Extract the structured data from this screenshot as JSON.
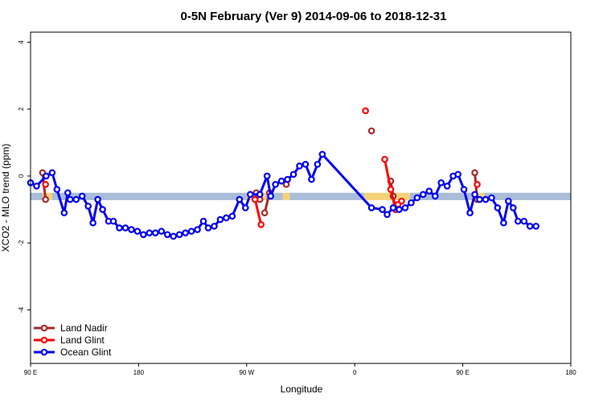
{
  "chart_data": {
    "type": "line",
    "title": "0-5N February (Ver 9)   2014-09-06 to 2018-12-31",
    "xlabel": "Longitude",
    "ylabel": "XCO2 - MLO trend (ppm)",
    "xlim": [
      90,
      540
    ],
    "ylim": [
      -5.6,
      4.3
    ],
    "x_ticks": [
      {
        "value": 90,
        "label": "90 E"
      },
      {
        "value": 180,
        "label": "180"
      },
      {
        "value": 270,
        "label": "90 W"
      },
      {
        "value": 360,
        "label": "0"
      },
      {
        "value": 450,
        "label": "90 E"
      },
      {
        "value": 540,
        "label": "180"
      }
    ],
    "y_ticks": [
      {
        "value": 4,
        "label": "4"
      },
      {
        "value": 2,
        "label": "2"
      },
      {
        "value": 0,
        "label": "0"
      },
      {
        "value": -2,
        "label": "-2"
      },
      {
        "value": -4,
        "label": "-4"
      }
    ],
    "bands": [
      {
        "x0": 90,
        "x1": 100,
        "y0": -0.72,
        "y1": -0.5,
        "color": "#a9bcd8"
      },
      {
        "x0": 100,
        "x1": 108,
        "y0": -0.72,
        "y1": -0.5,
        "color": "#f5d27a"
      },
      {
        "x0": 108,
        "x1": 270,
        "y0": -0.72,
        "y1": -0.5,
        "color": "#a9bcd8"
      },
      {
        "x0": 270,
        "x1": 286,
        "y0": -0.72,
        "y1": -0.5,
        "color": "#f5d27a"
      },
      {
        "x0": 286,
        "x1": 300,
        "y0": -0.72,
        "y1": -0.5,
        "color": "#a9bcd8"
      },
      {
        "x0": 300,
        "x1": 306,
        "y0": -0.72,
        "y1": -0.5,
        "color": "#f5d27a"
      },
      {
        "x0": 306,
        "x1": 368,
        "y0": -0.72,
        "y1": -0.5,
        "color": "#a9bcd8"
      },
      {
        "x0": 368,
        "x1": 406,
        "y0": -0.72,
        "y1": -0.5,
        "color": "#f5d27a"
      },
      {
        "x0": 406,
        "x1": 460,
        "y0": -0.72,
        "y1": -0.5,
        "color": "#a9bcd8"
      },
      {
        "x0": 460,
        "x1": 468,
        "y0": -0.72,
        "y1": -0.5,
        "color": "#f5d27a"
      },
      {
        "x0": 468,
        "x1": 540,
        "y0": -0.72,
        "y1": -0.5,
        "color": "#a9bcd8"
      }
    ],
    "legend_position": "bottom-left",
    "series": [
      {
        "name": "Land Nadir",
        "color": "#a52a2a",
        "segments": [
          [
            [
              100,
              0.1
            ],
            [
              102.5,
              -0.7
            ]
          ],
          [
            [
              278,
              -0.5
            ],
            [
              281,
              -0.7
            ]
          ],
          [
            [
              285,
              -1.1
            ],
            [
              289,
              -0.5
            ]
          ],
          [
            [
              303,
              -0.25
            ]
          ],
          [
            [
              374,
              1.35
            ]
          ],
          [
            [
              390,
              -0.15
            ],
            [
              392,
              -0.6
            ],
            [
              394,
              -1.0
            ]
          ],
          [
            [
              460,
              0.1
            ],
            [
              462,
              -0.7
            ]
          ]
        ]
      },
      {
        "name": "Land Glint",
        "color": "#ff0000",
        "segments": [
          [
            [
              102.5,
              -0.25
            ]
          ],
          [
            [
              277,
              -0.7
            ],
            [
              282,
              -1.45
            ]
          ],
          [
            [
              369,
              1.95
            ]
          ],
          [
            [
              385,
              0.5
            ],
            [
              390,
              -0.4
            ],
            [
              394,
              -1.0
            ]
          ],
          [
            [
              396,
              -0.85
            ],
            [
              399,
              -0.75
            ]
          ],
          [
            [
              462,
              -0.25
            ]
          ]
        ]
      },
      {
        "name": "Ocean Glint",
        "color": "#0000ee",
        "points": [
          [
            90,
            -0.2
          ],
          [
            95,
            -0.3
          ],
          [
            103,
            0.0
          ],
          [
            108,
            0.1
          ],
          [
            112,
            -0.4
          ],
          [
            118,
            -1.1
          ],
          [
            121,
            -0.5
          ],
          [
            123,
            -0.7
          ],
          [
            128,
            -0.7
          ],
          [
            133,
            -0.6
          ],
          [
            138,
            -0.9
          ],
          [
            142,
            -1.4
          ],
          [
            146,
            -0.7
          ],
          [
            150,
            -1.0
          ],
          [
            155,
            -1.35
          ],
          [
            159,
            -1.35
          ],
          [
            164,
            -1.55
          ],
          [
            169,
            -1.55
          ],
          [
            174,
            -1.6
          ],
          [
            179,
            -1.65
          ],
          [
            184,
            -1.75
          ],
          [
            189,
            -1.7
          ],
          [
            194,
            -1.7
          ],
          [
            199,
            -1.65
          ],
          [
            204,
            -1.75
          ],
          [
            209,
            -1.8
          ],
          [
            214,
            -1.75
          ],
          [
            219,
            -1.7
          ],
          [
            224,
            -1.65
          ],
          [
            229,
            -1.6
          ],
          [
            234,
            -1.35
          ],
          [
            238,
            -1.55
          ],
          [
            243,
            -1.5
          ],
          [
            248,
            -1.3
          ],
          [
            253,
            -1.25
          ],
          [
            258,
            -1.2
          ],
          [
            264,
            -0.7
          ],
          [
            269,
            -0.95
          ],
          [
            273,
            -0.55
          ],
          [
            281,
            -0.55
          ],
          [
            287,
            0.0
          ],
          [
            290,
            -0.6
          ],
          [
            294,
            -0.25
          ],
          [
            299,
            -0.15
          ],
          [
            304,
            -0.1
          ],
          [
            309,
            0.05
          ],
          [
            314,
            0.3
          ],
          [
            319,
            0.35
          ],
          [
            324,
            -0.1
          ],
          [
            329,
            0.35
          ],
          [
            333,
            0.65
          ],
          [
            374,
            -0.95
          ],
          [
            383,
            -1.0
          ],
          [
            387,
            -1.15
          ],
          [
            392,
            -0.95
          ],
          [
            397,
            -1.0
          ],
          [
            402,
            -0.95
          ],
          [
            407,
            -0.8
          ],
          [
            412,
            -0.65
          ],
          [
            417,
            -0.55
          ],
          [
            422,
            -0.45
          ],
          [
            427,
            -0.6
          ],
          [
            432,
            -0.2
          ],
          [
            437,
            -0.3
          ],
          [
            442,
            0.0
          ],
          [
            446,
            0.05
          ],
          [
            451,
            -0.4
          ],
          [
            456,
            -1.1
          ],
          [
            460,
            -0.55
          ],
          [
            464,
            -0.7
          ],
          [
            469,
            -0.7
          ],
          [
            474,
            -0.65
          ],
          [
            479,
            -0.95
          ],
          [
            484,
            -1.4
          ],
          [
            488,
            -0.75
          ],
          [
            492,
            -0.95
          ],
          [
            496,
            -1.35
          ],
          [
            501,
            -1.35
          ],
          [
            506,
            -1.5
          ],
          [
            511,
            -1.5
          ]
        ]
      }
    ]
  }
}
